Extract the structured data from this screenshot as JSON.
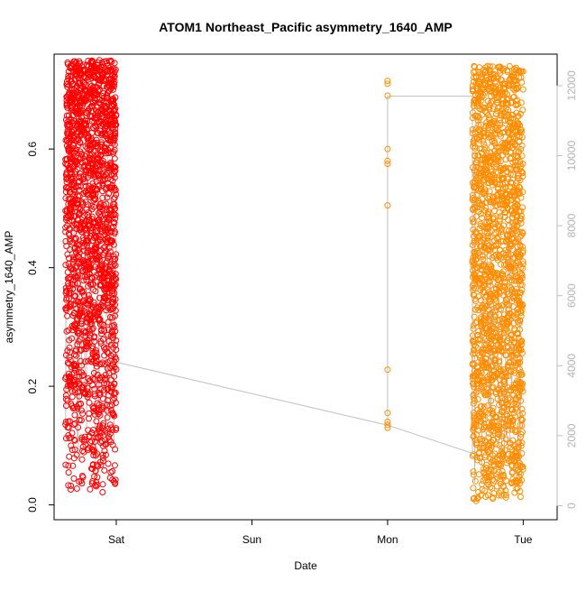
{
  "chart_data": {
    "type": "scatter",
    "title": "ATOM1 Northeast_Pacific asymmetry_1640_AMP",
    "xlabel": "Date",
    "ylabel": "asymmetry_1640_AMP",
    "x_axis": {
      "type": "date",
      "domain": [
        "2021-01-01T13:00",
        "2021-01-05T06:00"
      ],
      "ticks": [
        {
          "value": "2021-01-02T00:00",
          "label": "Sat"
        },
        {
          "value": "2021-01-03T00:00",
          "label": "Sun"
        },
        {
          "value": "2021-01-04T00:00",
          "label": "Mon"
        },
        {
          "value": "2021-01-05T00:00",
          "label": "Tue"
        }
      ]
    },
    "y_axis_left": {
      "range": [
        -0.025,
        0.76
      ],
      "ticks": [
        0.0,
        0.2,
        0.4,
        0.6
      ],
      "tick_labels": [
        "0.0",
        "0.2",
        "0.4",
        "0.6"
      ]
    },
    "y_axis_right": {
      "range": [
        -400,
        12900
      ],
      "ticks": [
        0,
        2000,
        4000,
        6000,
        8000,
        10000,
        12000
      ],
      "tick_labels": [
        "0",
        "2000",
        "4000",
        "6000",
        "8000",
        "10000",
        "12000"
      ],
      "color": "#bebebe"
    },
    "grid": false,
    "colors": {
      "series_1": "#ff0000",
      "series_2": "#ff8c00",
      "depth_line": "#bebebe"
    },
    "series": [
      {
        "color": "#ff0000",
        "x_range": [
          "2021-01-01T15:00",
          "2021-01-02T00:00"
        ],
        "y_range": [
          0.015,
          0.75
        ],
        "points_shown": 1800
      },
      {
        "color": "#ff8c00",
        "x_range": [
          "2021-01-04T15:00",
          "2021-01-05T00:00"
        ],
        "y_range": [
          0.005,
          0.74
        ],
        "points_shown": 1800
      },
      {
        "color": "#ff8c00",
        "points": [
          [
            "2021-01-04T00:00",
            0.715
          ],
          [
            "2021-01-04T00:00",
            0.71
          ],
          [
            "2021-01-04T00:00",
            0.69
          ],
          [
            "2021-01-04T00:00",
            0.6
          ],
          [
            "2021-01-04T00:00",
            0.58
          ],
          [
            "2021-01-04T00:00",
            0.575
          ],
          [
            "2021-01-04T00:00",
            0.505
          ],
          [
            "2021-01-04T00:00",
            0.228
          ],
          [
            "2021-01-04T00:00",
            0.155
          ],
          [
            "2021-01-04T00:00",
            0.14
          ],
          [
            "2021-01-04T00:00",
            0.135
          ],
          [
            "2021-01-04T00:00",
            0.13
          ]
        ]
      }
    ],
    "depth_line_points": [
      [
        "2021-01-02T00:00",
        4100
      ],
      [
        "2021-01-04T00:00",
        2300
      ],
      [
        "2021-01-04T00:00",
        7400
      ],
      [
        "2021-01-04T00:00",
        11700
      ],
      [
        "2021-01-04T15:00",
        11700
      ],
      [
        "2021-01-04T15:00",
        1500
      ],
      [
        "2021-01-04T00:00",
        2300
      ]
    ]
  }
}
